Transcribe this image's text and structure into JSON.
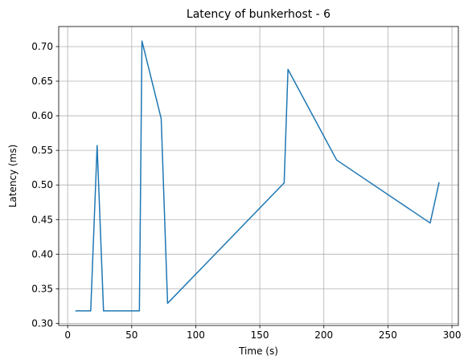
{
  "chart_data": {
    "type": "line",
    "title": "Latency of bunkerhost - 6",
    "xlabel": "Time (s)",
    "ylabel": "Latency (ms)",
    "xlim": [
      -7,
      305
    ],
    "ylim": [
      0.297,
      0.729
    ],
    "xticks": [
      0,
      50,
      100,
      150,
      200,
      250,
      300
    ],
    "yticks": [
      0.3,
      0.35,
      0.4,
      0.45,
      0.5,
      0.55,
      0.6,
      0.65,
      0.7
    ],
    "xtick_labels": [
      "0",
      "50",
      "100",
      "150",
      "200",
      "250",
      "300"
    ],
    "ytick_labels": [
      "0.30",
      "0.35",
      "0.40",
      "0.45",
      "0.50",
      "0.55",
      "0.60",
      "0.65",
      "0.70"
    ],
    "grid": true,
    "series": [
      {
        "color": "#1f77b4",
        "x": [
          6,
          18,
          23,
          28,
          56,
          58,
          73,
          78,
          169,
          172,
          210,
          283,
          290
        ],
        "y": [
          0.318,
          0.318,
          0.557,
          0.318,
          0.318,
          0.708,
          0.596,
          0.329,
          0.503,
          0.667,
          0.536,
          0.445,
          0.504
        ]
      }
    ]
  }
}
